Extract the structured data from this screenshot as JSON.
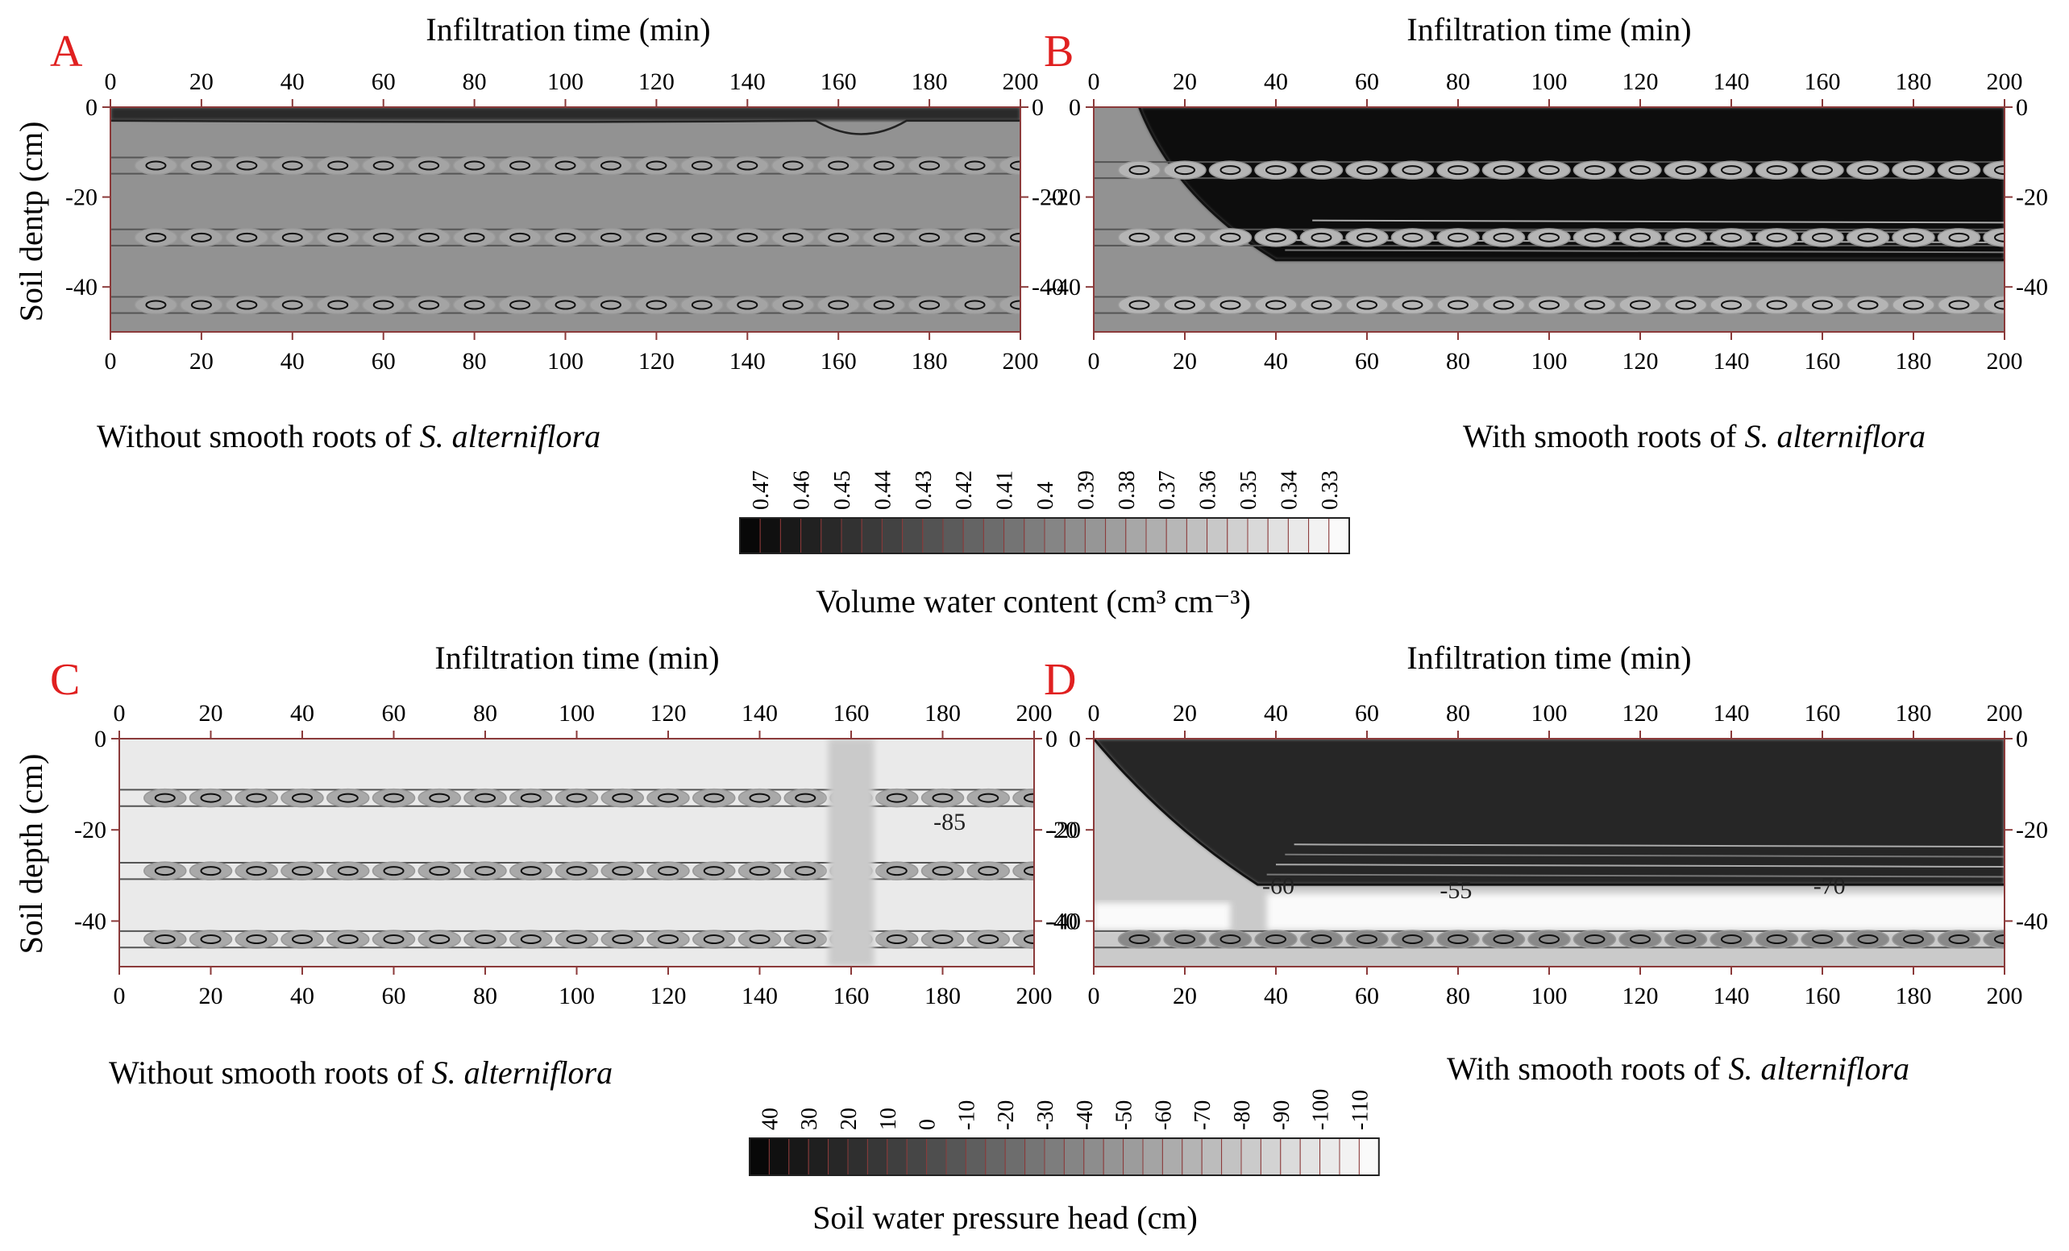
{
  "panels": [
    {
      "id": "A",
      "top_axis_label": "Infiltration time (min)",
      "y_axis_label": "Soil dentp (cm)",
      "caption_prefix": "Without smooth roots of ",
      "caption_italic": "S. alterniflora",
      "contour_label": "",
      "contour_label2": "",
      "contour_label3": ""
    },
    {
      "id": "B",
      "top_axis_label": "Infiltration time (min)",
      "y_axis_label": "",
      "caption_prefix": "With smooth roots of ",
      "caption_italic": "S. alterniflora",
      "contour_label": "",
      "contour_label2": "",
      "contour_label3": ""
    },
    {
      "id": "C",
      "top_axis_label": "Infiltration time (min)",
      "y_axis_label": "Soil depth (cm)",
      "caption_prefix": "Without smooth roots of ",
      "caption_italic": "S. alterniflora",
      "contour_label": "-85",
      "contour_label2": "",
      "contour_label3": ""
    },
    {
      "id": "D",
      "top_axis_label": "Infiltration time (min)",
      "y_axis_label": "",
      "caption_prefix": "With smooth roots of ",
      "caption_italic": "S. alterniflora",
      "contour_label": "-60",
      "contour_label2": "-55",
      "contour_label3": "-70"
    }
  ],
  "colorbars": [
    {
      "title": "Volume water content (cm³ cm⁻³)",
      "ticks": [
        "0.47",
        "0.46",
        "0.45",
        "0.44",
        "0.43",
        "0.42",
        "0.41",
        "0.4",
        "0.39",
        "0.38",
        "0.37",
        "0.36",
        "0.35",
        "0.34",
        "0.33"
      ]
    },
    {
      "title": "Soil water pressure head (cm)",
      "ticks": [
        "40",
        "30",
        "20",
        "10",
        "0",
        "-10",
        "-20",
        "-30",
        "-40",
        "-50",
        "-60",
        "-70",
        "-80",
        "-90",
        "-100",
        "-110"
      ]
    }
  ],
  "colors": {
    "panel_label": "#e02020",
    "frame": "#8b3a3a"
  },
  "chart_data": [
    {
      "panel": "A",
      "type": "heatmap",
      "quantity": "Volume water content (cm³ cm⁻³)",
      "xlabel": "Infiltration time (min)",
      "ylabel": "Soil dentp (cm)",
      "xlim": [
        0,
        200
      ],
      "ylim": [
        -50,
        0
      ],
      "xticks": [
        0,
        20,
        40,
        60,
        80,
        100,
        120,
        140,
        160,
        180,
        200
      ],
      "yticks": [
        0,
        -20,
        -40
      ],
      "background_level": 0.39,
      "features": [
        {
          "kind": "surface band",
          "depth_range": [
            -3,
            0
          ],
          "level": 0.45
        },
        {
          "kind": "root-zone ovals",
          "depths": [
            -13,
            -29,
            -44
          ],
          "x_spacing": 10,
          "level": 0.38
        }
      ]
    },
    {
      "panel": "B",
      "type": "heatmap",
      "quantity": "Volume water content (cm³ cm⁻³)",
      "xlabel": "Infiltration time (min)",
      "xlim": [
        0,
        200
      ],
      "ylim": [
        -50,
        0
      ],
      "xticks": [
        0,
        20,
        40,
        60,
        80,
        100,
        120,
        140,
        160,
        180,
        200
      ],
      "yticks": [
        0,
        -20,
        -40
      ],
      "background_level": 0.39,
      "features": [
        {
          "kind": "wetting front",
          "depth_range": [
            -34,
            0
          ],
          "start_time": 10,
          "full_time": 40,
          "level": 0.47
        },
        {
          "kind": "root-zone ovals",
          "depths": [
            -14,
            -29,
            -44
          ],
          "x_spacing": 10,
          "level": 0.37
        }
      ]
    },
    {
      "panel": "C",
      "type": "heatmap",
      "quantity": "Soil water pressure head (cm)",
      "xlabel": "Infiltration time (min)",
      "ylabel": "Soil depth (cm)",
      "xlim": [
        0,
        200
      ],
      "ylim": [
        -50,
        0
      ],
      "xticks": [
        0,
        20,
        40,
        60,
        80,
        100,
        120,
        140,
        160,
        180,
        200
      ],
      "yticks": [
        0,
        -20,
        -40
      ],
      "background_level": -100,
      "features": [
        {
          "kind": "root-zone ovals",
          "depths": [
            -13,
            -29,
            -44
          ],
          "x_spacing": 10,
          "level": -60
        },
        {
          "kind": "wetter column",
          "time_range": [
            155,
            165
          ],
          "level": -80
        }
      ]
    },
    {
      "panel": "D",
      "type": "heatmap",
      "quantity": "Soil water pressure head (cm)",
      "xlabel": "Infiltration time (min)",
      "xlim": [
        0,
        200
      ],
      "ylim": [
        -50,
        0
      ],
      "xticks": [
        0,
        20,
        40,
        60,
        80,
        100,
        120,
        140,
        160,
        180,
        200
      ],
      "yticks": [
        0,
        -20,
        -40
      ],
      "background_level": -80,
      "features": [
        {
          "kind": "wetting front",
          "depth_range": [
            -32,
            0
          ],
          "start_time": 0,
          "full_time": 36,
          "level": 20
        },
        {
          "kind": "dry band",
          "depth_range": [
            -42,
            -34
          ],
          "level": -110
        },
        {
          "kind": "root-zone ovals",
          "depths": [
            -44
          ],
          "x_spacing": 10,
          "level": -40
        }
      ]
    }
  ]
}
